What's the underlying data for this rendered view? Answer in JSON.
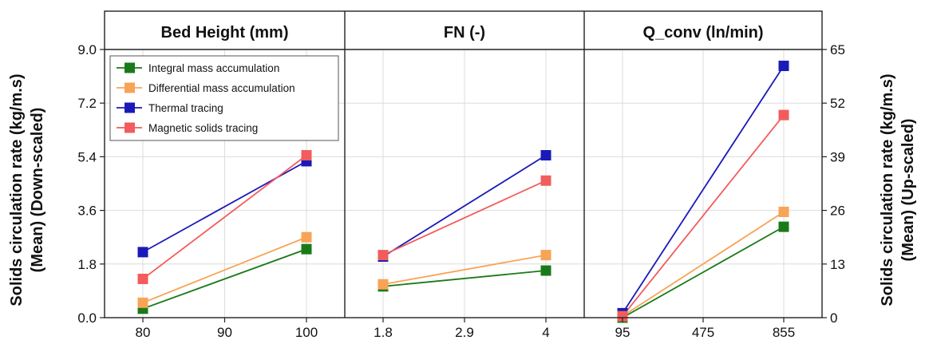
{
  "chart_data": {
    "type": "line",
    "title": "",
    "panels": [
      {
        "title": "Bed Height (mm)",
        "xlim": [
          80,
          100
        ],
        "xticks": [
          "80",
          "90",
          "100"
        ],
        "x": [
          80,
          100
        ],
        "series": [
          {
            "name": "Integral mass accumulation",
            "values": [
              0.3,
              2.3
            ]
          },
          {
            "name": "Differential mass accumulation",
            "values": [
              0.5,
              2.7
            ]
          },
          {
            "name": "Thermal tracing",
            "values": [
              2.2,
              5.25
            ]
          },
          {
            "name": "Magnetic solids tracing",
            "values": [
              1.3,
              5.45
            ]
          }
        ]
      },
      {
        "title": "FN (-)",
        "xlim": [
          1.8,
          4
        ],
        "xticks": [
          "1.8",
          "2.9",
          "4"
        ],
        "x": [
          1.8,
          4
        ],
        "series": [
          {
            "name": "Integral mass accumulation",
            "values": [
              1.05,
              1.58
            ]
          },
          {
            "name": "Differential mass accumulation",
            "values": [
              1.12,
              2.1
            ]
          },
          {
            "name": "Thermal tracing",
            "values": [
              2.05,
              5.45
            ]
          },
          {
            "name": "Magnetic solids tracing",
            "values": [
              2.1,
              4.6
            ]
          }
        ]
      },
      {
        "title": "Q_conv (ln/min)",
        "xlim": [
          95,
          855
        ],
        "xticks": [
          "95",
          "475",
          "855"
        ],
        "x": [
          95,
          855
        ],
        "series": [
          {
            "name": "Integral mass accumulation",
            "values": [
              0.0,
              3.05
            ]
          },
          {
            "name": "Differential mass accumulation",
            "values": [
              0.05,
              3.55
            ]
          },
          {
            "name": "Thermal tracing",
            "values": [
              0.15,
              8.45
            ]
          },
          {
            "name": "Magnetic solids tracing",
            "values": [
              0.05,
              6.8
            ]
          }
        ]
      }
    ],
    "ylabel_left": [
      "Solids circulation rate (kg/m.s)",
      "(Mean) (Down-scaled)"
    ],
    "ylabel_right": [
      "Solids circulation rate (kg/m.s)",
      "(Mean) (Up-scaled)"
    ],
    "ylim_left": [
      0,
      9.0
    ],
    "yticks_left": [
      "0.0",
      "1.8",
      "3.6",
      "5.4",
      "7.2",
      "9.0"
    ],
    "ylim_right": [
      0,
      65
    ],
    "yticks_right": [
      "0",
      "13",
      "26",
      "39",
      "52",
      "65"
    ],
    "grid": true,
    "legend_position": "top-left",
    "legend": [
      {
        "name": "Integral mass accumulation",
        "color": "#1a7a1a"
      },
      {
        "name": "Differential mass accumulation",
        "color": "#f7a457"
      },
      {
        "name": "Thermal tracing",
        "color": "#1a1ab8"
      },
      {
        "name": "Magnetic solids tracing",
        "color": "#f25c5c"
      }
    ],
    "colors": {
      "integral": "#1a7a1a",
      "differential": "#f7a457",
      "thermal": "#1a1ab8",
      "magnetic": "#f25c5c"
    }
  }
}
